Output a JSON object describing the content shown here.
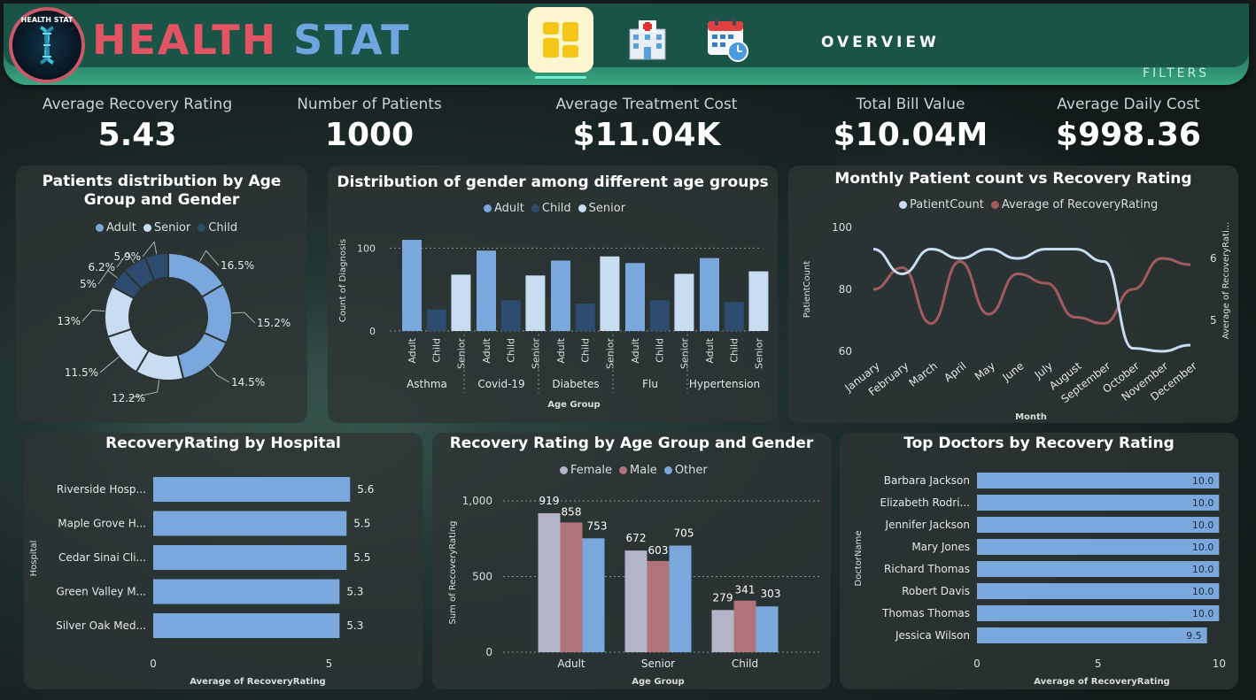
{
  "header": {
    "logo_text": "HEALTH STAT",
    "title_part1": "HEALTH",
    "title_part2": "STAT",
    "overview_label": "OVERVIEW",
    "filters_label": "FILTERS"
  },
  "kpis": [
    {
      "label": "Average Recovery Rating",
      "value": "5.43"
    },
    {
      "label": "Number of Patients",
      "value": "1000"
    },
    {
      "label": "Average Treatment Cost",
      "value": "$11.04K"
    },
    {
      "label": "Total Bill Value",
      "value": "$10.04M"
    },
    {
      "label": "Average Daily Cost",
      "value": "$998.36"
    }
  ],
  "colors": {
    "adult": "#7aa8dc",
    "senior": "#c8dcf2",
    "child": "#2d4c70",
    "female": "#b4b4c8",
    "male": "#b07478",
    "other": "#7aa8dc",
    "patient_line": "#c8dcf2",
    "recovery_line": "#a35a5e"
  },
  "chart_data": [
    {
      "id": "donut",
      "type": "pie",
      "title": "Patients distribution by Age Group and Gender",
      "legend": [
        "Adult",
        "Senior",
        "Child"
      ],
      "slices": [
        {
          "label": "16.5%",
          "value": 16.5,
          "group": "adult"
        },
        {
          "label": "15.2%",
          "value": 15.2,
          "group": "adult"
        },
        {
          "label": "14.5%",
          "value": 14.5,
          "group": "adult"
        },
        {
          "label": "12.2%",
          "value": 12.2,
          "group": "senior"
        },
        {
          "label": "11.5%",
          "value": 11.5,
          "group": "senior"
        },
        {
          "label": "13%",
          "value": 13.0,
          "group": "senior"
        },
        {
          "label": "5%",
          "value": 5.0,
          "group": "child"
        },
        {
          "label": "6.2%",
          "value": 6.2,
          "group": "child"
        },
        {
          "label": "5.9%",
          "value": 5.9,
          "group": "child"
        }
      ]
    },
    {
      "id": "gender_dist",
      "type": "bar",
      "title": "Distribution of gender among different age groups",
      "legend": [
        "Adult",
        "Child",
        "Senior"
      ],
      "xlabel": "Age Group",
      "ylabel": "Count of Diagnosis",
      "yticks": [
        0,
        100
      ],
      "ylim": [
        0,
        125
      ],
      "groups": [
        "Asthma",
        "Covid-19",
        "Diabetes",
        "Flu",
        "Hypertension"
      ],
      "subcategories": [
        "Adult",
        "Child",
        "Senior"
      ],
      "values": [
        [
          110,
          26,
          68
        ],
        [
          97,
          37,
          67
        ],
        [
          85,
          33,
          90
        ],
        [
          82,
          37,
          69
        ],
        [
          88,
          35,
          72
        ]
      ]
    },
    {
      "id": "monthly",
      "type": "line",
      "title": "Monthly Patient count vs Recovery Rating",
      "legend": [
        "PatientCount",
        "Average of RecoveryRating"
      ],
      "xlabel": "Month",
      "ylabel": "PatientCount",
      "y2label": "Average of RecoveryRati...",
      "categories": [
        "January",
        "February",
        "March",
        "April",
        "May",
        "June",
        "July",
        "August",
        "September",
        "October",
        "November",
        "December"
      ],
      "yticks": [
        60,
        80,
        100
      ],
      "ylim": [
        60,
        100
      ],
      "y2ticks": [
        5,
        6
      ],
      "y2lim": [
        4.5,
        6.5
      ],
      "series": [
        {
          "name": "PatientCount",
          "values": [
            93,
            85,
            93,
            90,
            93,
            90,
            93,
            93,
            89,
            61,
            60,
            62
          ]
        },
        {
          "name": "Average of RecoveryRating",
          "values": [
            5.5,
            5.85,
            4.95,
            5.95,
            5.1,
            5.75,
            5.6,
            5.05,
            4.95,
            5.5,
            6.0,
            5.9
          ]
        }
      ]
    },
    {
      "id": "hospital",
      "type": "bar",
      "orientation": "horizontal",
      "title": "RecoveryRating by Hospital",
      "xlabel": "Average of RecoveryRating",
      "ylabel": "Hospital",
      "xticks": [
        0,
        5
      ],
      "xlim": [
        0,
        6.4
      ],
      "categories": [
        "Riverside Hosp...",
        "Maple Grove H...",
        "Cedar Sinai Cli...",
        "Green Valley M...",
        "Silver Oak Med..."
      ],
      "values": [
        5.6,
        5.5,
        5.5,
        5.3,
        5.3
      ]
    },
    {
      "id": "recovery_age",
      "type": "bar",
      "title": "Recovery Rating by Age Group and Gender",
      "legend": [
        "Female",
        "Male",
        "Other"
      ],
      "xlabel": "Age Group",
      "ylabel": "Sum of RecoveryRating",
      "yticks": [
        "0",
        "500",
        "1,000"
      ],
      "ylim": [
        0,
        1100
      ],
      "categories": [
        "Adult",
        "Senior",
        "Child"
      ],
      "series": [
        {
          "name": "Female",
          "values": [
            919,
            672,
            279
          ]
        },
        {
          "name": "Male",
          "values": [
            858,
            603,
            341
          ]
        },
        {
          "name": "Other",
          "values": [
            753,
            705,
            303
          ]
        }
      ]
    },
    {
      "id": "doctors",
      "type": "bar",
      "orientation": "horizontal",
      "title": "Top Doctors by Recovery Rating",
      "xlabel": "Average of RecoveryRating",
      "ylabel": "DoctorName",
      "xticks": [
        0,
        5,
        10
      ],
      "xlim": [
        0,
        10.5
      ],
      "categories": [
        "Barbara Jackson",
        "Elizabeth Rodri...",
        "Jennifer Jackson",
        "Mary Jones",
        "Richard Thomas",
        "Robert Davis",
        "Thomas Thomas",
        "Jessica Wilson"
      ],
      "values": [
        10.0,
        10.0,
        10.0,
        10.0,
        10.0,
        10.0,
        10.0,
        9.5
      ],
      "labels": [
        "10.0",
        "10.0",
        "10.0",
        "10.0",
        "10.0",
        "10.0",
        "10.0",
        "9.5"
      ]
    }
  ]
}
